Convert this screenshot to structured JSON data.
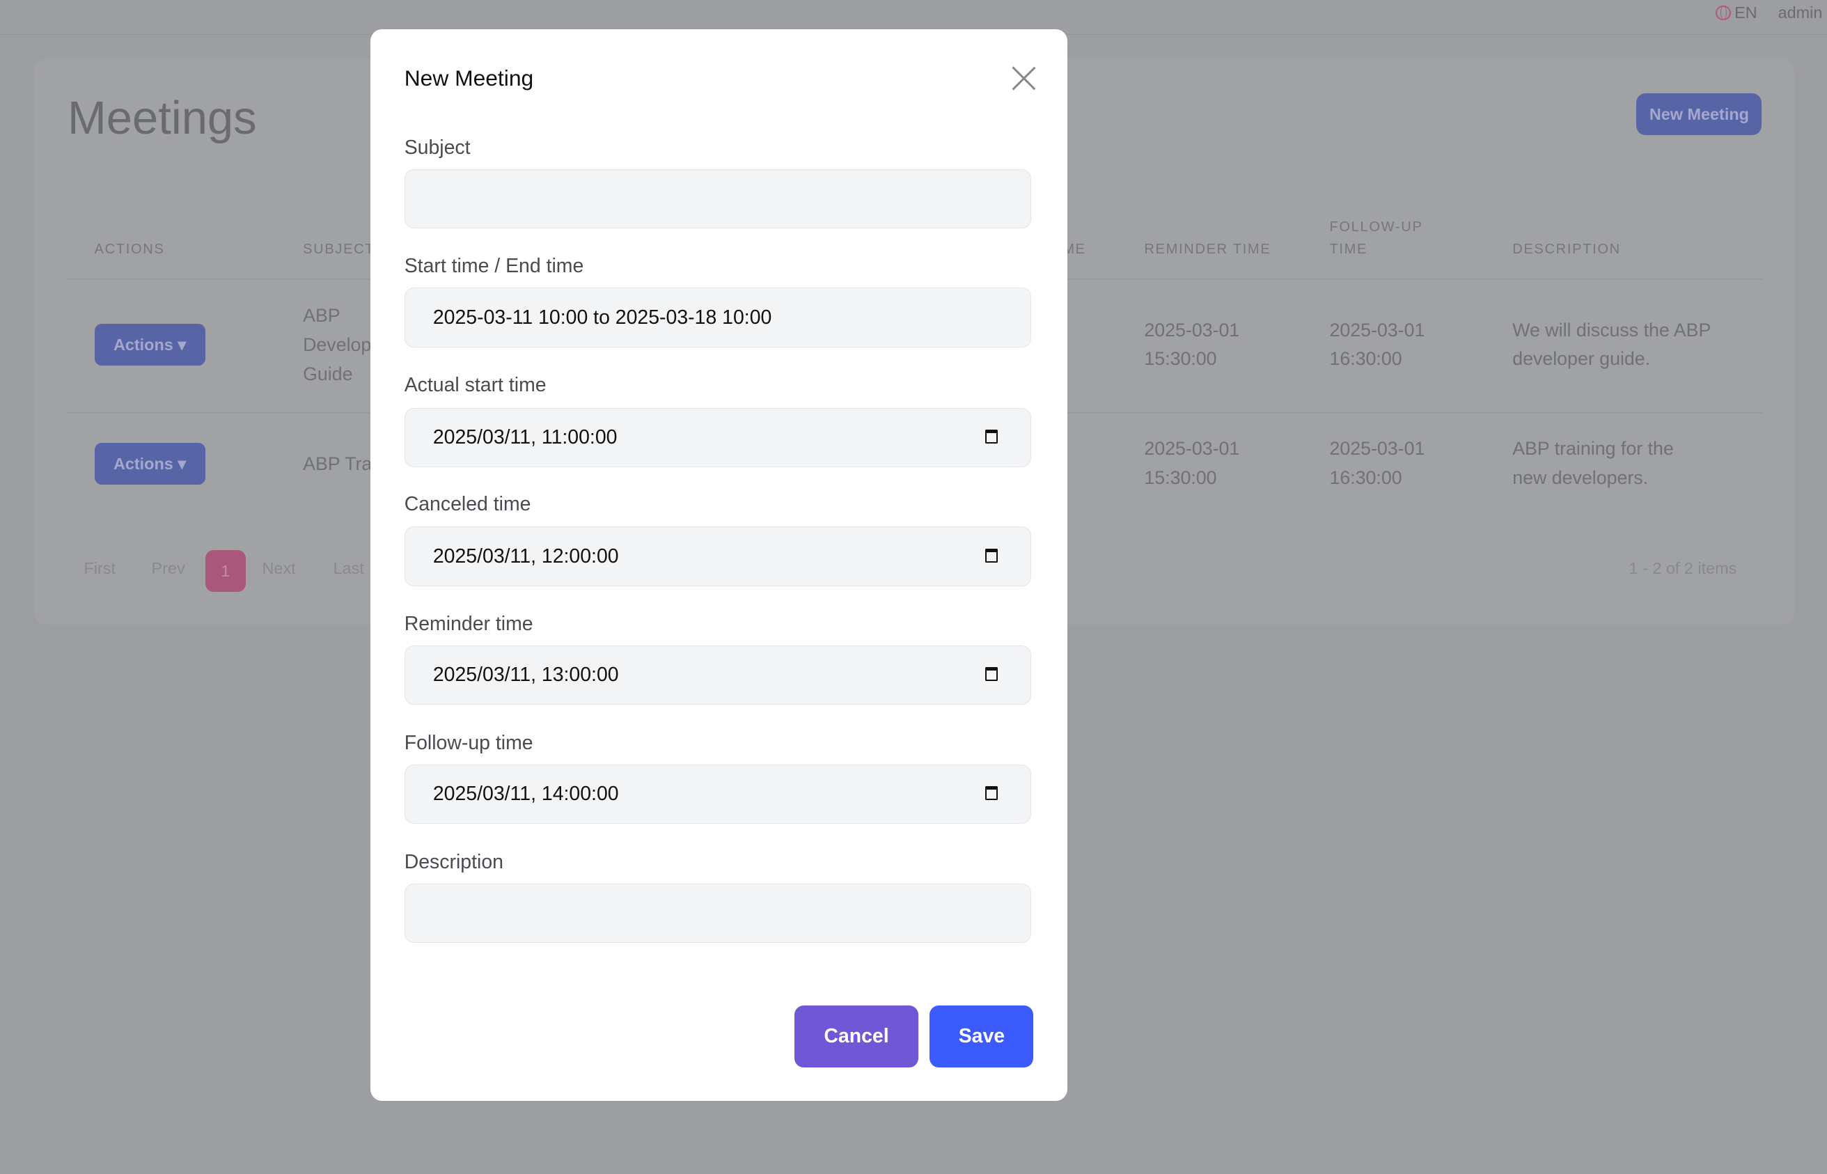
{
  "topbar": {
    "language": "EN",
    "user": "admin",
    "globe_icon": "globe-icon"
  },
  "page": {
    "title": "Meetings",
    "new_button": "New Meeting"
  },
  "table": {
    "headers": [
      "ACTIONS",
      "SUBJECT",
      "ME",
      "REMINDER TIME",
      "FOLLOW-UP",
      "TIME",
      "DESCRIPTION"
    ],
    "rows": [
      {
        "action": "Actions",
        "subject_lines": [
          "ABP",
          "Develop",
          "Guide"
        ],
        "reminder": [
          "2025-03-01",
          "15:30:00"
        ],
        "followup": [
          "2025-03-01",
          "16:30:00"
        ],
        "description": [
          "We will discuss the ABP",
          "developer guide."
        ]
      },
      {
        "action": "Actions",
        "subject_lines": [
          "ABP Tra"
        ],
        "reminder": [
          "2025-03-01",
          "15:30:00"
        ],
        "followup": [
          "2025-03-01",
          "16:30:00"
        ],
        "description": [
          "ABP training for the",
          "new developers."
        ]
      }
    ]
  },
  "pagination": {
    "first": "First",
    "prev": "Prev",
    "current": "1",
    "next": "Next",
    "last": "Last",
    "summary": "1 - 2 of 2 items"
  },
  "modal": {
    "title": "New Meeting",
    "fields": {
      "subject": {
        "label": "Subject",
        "value": ""
      },
      "range": {
        "label": "Start time / End time",
        "value": "2025-03-11 10:00 to 2025-03-18 10:00"
      },
      "actual": {
        "label": "Actual start time",
        "value": "2025/03/11, 11:00:00"
      },
      "canceled": {
        "label": "Canceled time",
        "value": "2025/03/11, 12:00:00"
      },
      "reminder": {
        "label": "Reminder time",
        "value": "2025/03/11, 13:00:00"
      },
      "followup": {
        "label": "Follow-up time",
        "value": "2025/03/11, 14:00:00"
      },
      "description": {
        "label": "Description",
        "value": ""
      }
    },
    "cancel": "Cancel",
    "save": "Save"
  },
  "colors": {
    "cancel": "#6f57d6",
    "save": "#3b5bfd",
    "overlay": "#9d9ea2"
  }
}
